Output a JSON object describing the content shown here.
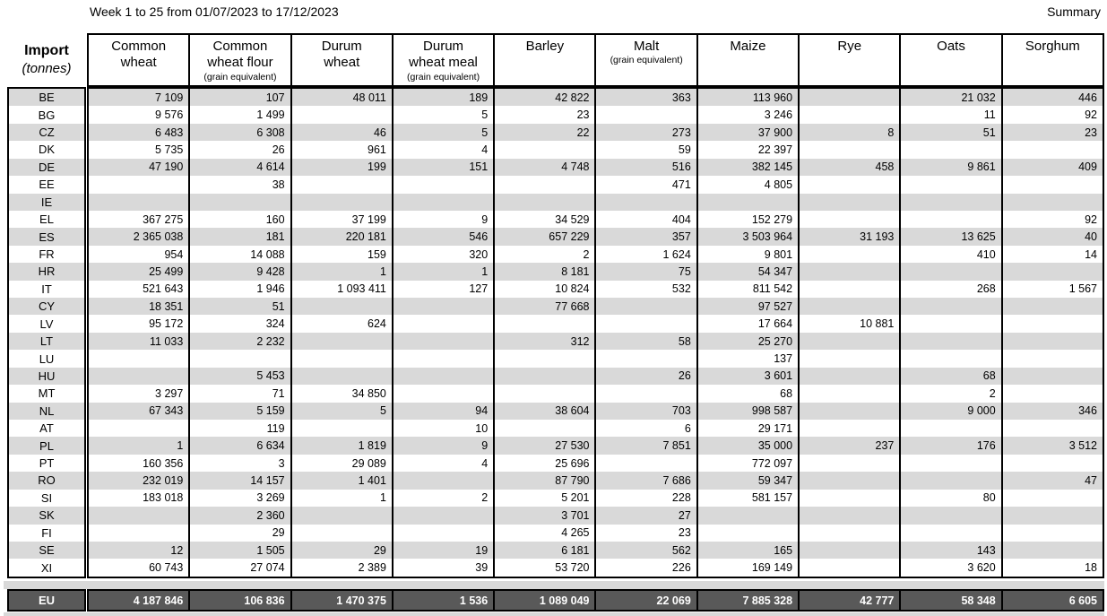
{
  "page": {
    "title": "Week 1 to 25 from 01/07/2023 to 17/12/2023",
    "summary_label": "Summary"
  },
  "colors": {
    "stripe": "#d9d9d9",
    "total_bg": "#595959",
    "total_text": "#ffffff",
    "border": "#000000"
  },
  "table": {
    "corner": {
      "title": "Import",
      "subtitle": "(tonnes)"
    },
    "columns": [
      {
        "lines": [
          "Common",
          "wheat"
        ],
        "sub": ""
      },
      {
        "lines": [
          "Common",
          "wheat flour"
        ],
        "sub": "(grain equivalent)"
      },
      {
        "lines": [
          "Durum",
          "wheat"
        ],
        "sub": ""
      },
      {
        "lines": [
          "Durum",
          "wheat meal"
        ],
        "sub": "(grain equivalent)"
      },
      {
        "lines": [
          "Barley"
        ],
        "sub": ""
      },
      {
        "lines": [
          "Malt"
        ],
        "sub": "(grain equivalent)"
      },
      {
        "lines": [
          "Maize"
        ],
        "sub": ""
      },
      {
        "lines": [
          "Rye"
        ],
        "sub": ""
      },
      {
        "lines": [
          "Oats"
        ],
        "sub": ""
      },
      {
        "lines": [
          "Sorghum"
        ],
        "sub": ""
      }
    ],
    "rows": [
      {
        "code": "BE",
        "values": [
          "7 109",
          "107",
          "48 011",
          "189",
          "42 822",
          "363",
          "113 960",
          "",
          "21 032",
          "446"
        ]
      },
      {
        "code": "BG",
        "values": [
          "9 576",
          "1 499",
          "",
          "5",
          "23",
          "",
          "3 246",
          "",
          "11",
          "92"
        ]
      },
      {
        "code": "CZ",
        "values": [
          "6 483",
          "6 308",
          "46",
          "5",
          "22",
          "273",
          "37 900",
          "8",
          "51",
          "23"
        ]
      },
      {
        "code": "DK",
        "values": [
          "5 735",
          "26",
          "961",
          "4",
          "",
          "59",
          "22 397",
          "",
          "",
          ""
        ]
      },
      {
        "code": "DE",
        "values": [
          "47 190",
          "4 614",
          "199",
          "151",
          "4 748",
          "516",
          "382 145",
          "458",
          "9 861",
          "409"
        ]
      },
      {
        "code": "EE",
        "values": [
          "",
          "38",
          "",
          "",
          "",
          "471",
          "4 805",
          "",
          "",
          ""
        ]
      },
      {
        "code": "IE",
        "values": [
          "",
          "",
          "",
          "",
          "",
          "",
          "",
          "",
          "",
          ""
        ]
      },
      {
        "code": "EL",
        "values": [
          "367 275",
          "160",
          "37 199",
          "9",
          "34 529",
          "404",
          "152 279",
          "",
          "",
          "92"
        ]
      },
      {
        "code": "ES",
        "values": [
          "2 365 038",
          "181",
          "220 181",
          "546",
          "657 229",
          "357",
          "3 503 964",
          "31 193",
          "13 625",
          "40"
        ]
      },
      {
        "code": "FR",
        "values": [
          "954",
          "14 088",
          "159",
          "320",
          "2",
          "1 624",
          "9 801",
          "",
          "410",
          "14"
        ]
      },
      {
        "code": "HR",
        "values": [
          "25 499",
          "9 428",
          "1",
          "1",
          "8 181",
          "75",
          "54 347",
          "",
          "",
          ""
        ]
      },
      {
        "code": "IT",
        "values": [
          "521 643",
          "1 946",
          "1 093 411",
          "127",
          "10 824",
          "532",
          "811 542",
          "",
          "268",
          "1 567"
        ]
      },
      {
        "code": "CY",
        "values": [
          "18 351",
          "51",
          "",
          "",
          "77 668",
          "",
          "97 527",
          "",
          "",
          ""
        ]
      },
      {
        "code": "LV",
        "values": [
          "95 172",
          "324",
          "624",
          "",
          "",
          "",
          "17 664",
          "10 881",
          "",
          ""
        ]
      },
      {
        "code": "LT",
        "values": [
          "11 033",
          "2 232",
          "",
          "",
          "312",
          "58",
          "25 270",
          "",
          "",
          ""
        ]
      },
      {
        "code": "LU",
        "values": [
          "",
          "",
          "",
          "",
          "",
          "",
          "137",
          "",
          "",
          ""
        ]
      },
      {
        "code": "HU",
        "values": [
          "",
          "5 453",
          "",
          "",
          "",
          "26",
          "3 601",
          "",
          "68",
          ""
        ]
      },
      {
        "code": "MT",
        "values": [
          "3 297",
          "71",
          "34 850",
          "",
          "",
          "",
          "68",
          "",
          "2",
          ""
        ]
      },
      {
        "code": "NL",
        "values": [
          "67 343",
          "5 159",
          "5",
          "94",
          "38 604",
          "703",
          "998 587",
          "",
          "9 000",
          "346"
        ]
      },
      {
        "code": "AT",
        "values": [
          "",
          "119",
          "",
          "10",
          "",
          "6",
          "29 171",
          "",
          "",
          ""
        ]
      },
      {
        "code": "PL",
        "values": [
          "1",
          "6 634",
          "1 819",
          "9",
          "27 530",
          "7 851",
          "35 000",
          "237",
          "176",
          "3 512"
        ]
      },
      {
        "code": "PT",
        "values": [
          "160 356",
          "3",
          "29 089",
          "4",
          "25 696",
          "",
          "772 097",
          "",
          "",
          ""
        ]
      },
      {
        "code": "RO",
        "values": [
          "232 019",
          "14 157",
          "1 401",
          "",
          "87 790",
          "7 686",
          "59 347",
          "",
          "",
          "47"
        ]
      },
      {
        "code": "SI",
        "values": [
          "183 018",
          "3 269",
          "1",
          "2",
          "5 201",
          "228",
          "581 157",
          "",
          "80",
          ""
        ]
      },
      {
        "code": "SK",
        "values": [
          "",
          "2 360",
          "",
          "",
          "3 701",
          "27",
          "",
          "",
          "",
          ""
        ]
      },
      {
        "code": "FI",
        "values": [
          "",
          "29",
          "",
          "",
          "4 265",
          "23",
          "",
          "",
          "",
          ""
        ]
      },
      {
        "code": "SE",
        "values": [
          "12",
          "1 505",
          "29",
          "19",
          "6 181",
          "562",
          "165",
          "",
          "143",
          ""
        ]
      },
      {
        "code": "XI",
        "values": [
          "60 743",
          "27 074",
          "2 389",
          "39",
          "53 720",
          "226",
          "169 149",
          "",
          "3 620",
          "18"
        ]
      }
    ],
    "total_row": {
      "code": "EU",
      "values": [
        "4 187 846",
        "106 836",
        "1 470 375",
        "1 536",
        "1 089 049",
        "22 069",
        "7 885 328",
        "42 777",
        "58 348",
        "6 605"
      ]
    }
  }
}
